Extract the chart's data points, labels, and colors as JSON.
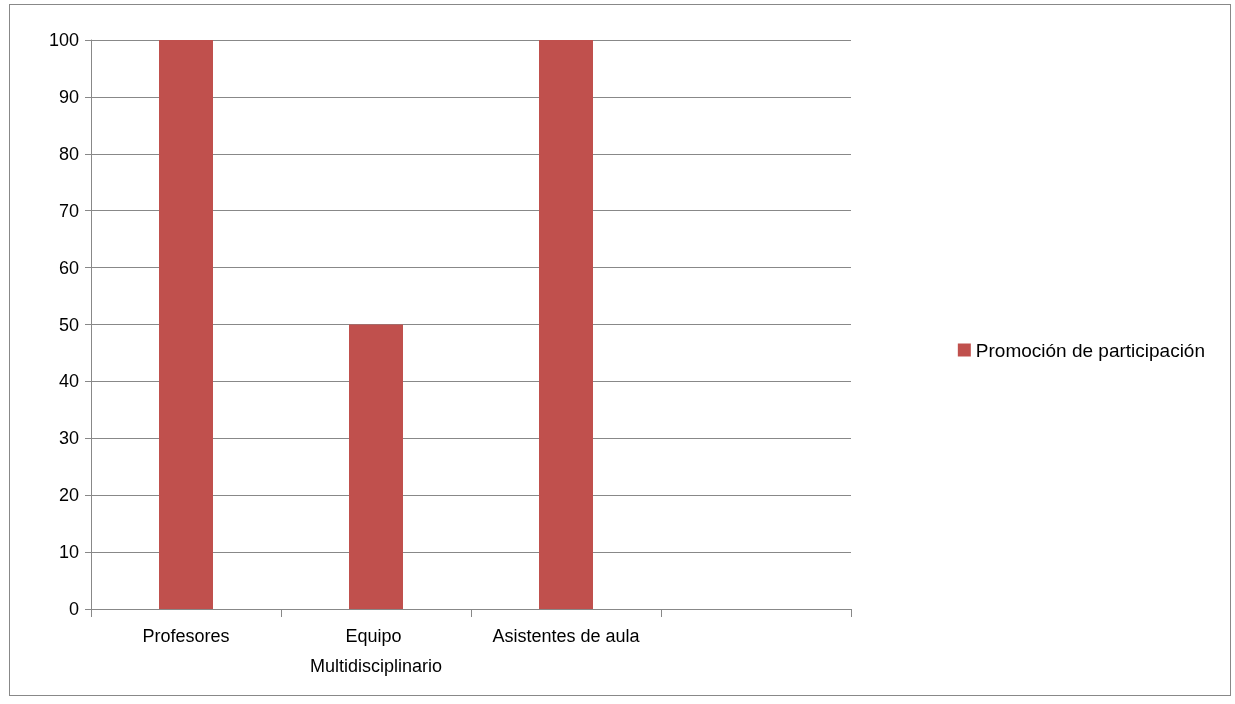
{
  "chart_data": {
    "type": "bar",
    "categories": [
      "Profesores",
      "Equipo Multidisciplinario",
      "Asistentes de aula",
      null
    ],
    "series": [
      {
        "name": "Promoción de participación",
        "color": "#c0504d",
        "values": [
          100,
          50,
          100,
          null
        ]
      }
    ],
    "ylim": [
      0,
      100
    ],
    "yticks": [
      0,
      10,
      20,
      30,
      40,
      50,
      60,
      70,
      80,
      90,
      100
    ],
    "grid": "y",
    "legend": "right"
  }
}
